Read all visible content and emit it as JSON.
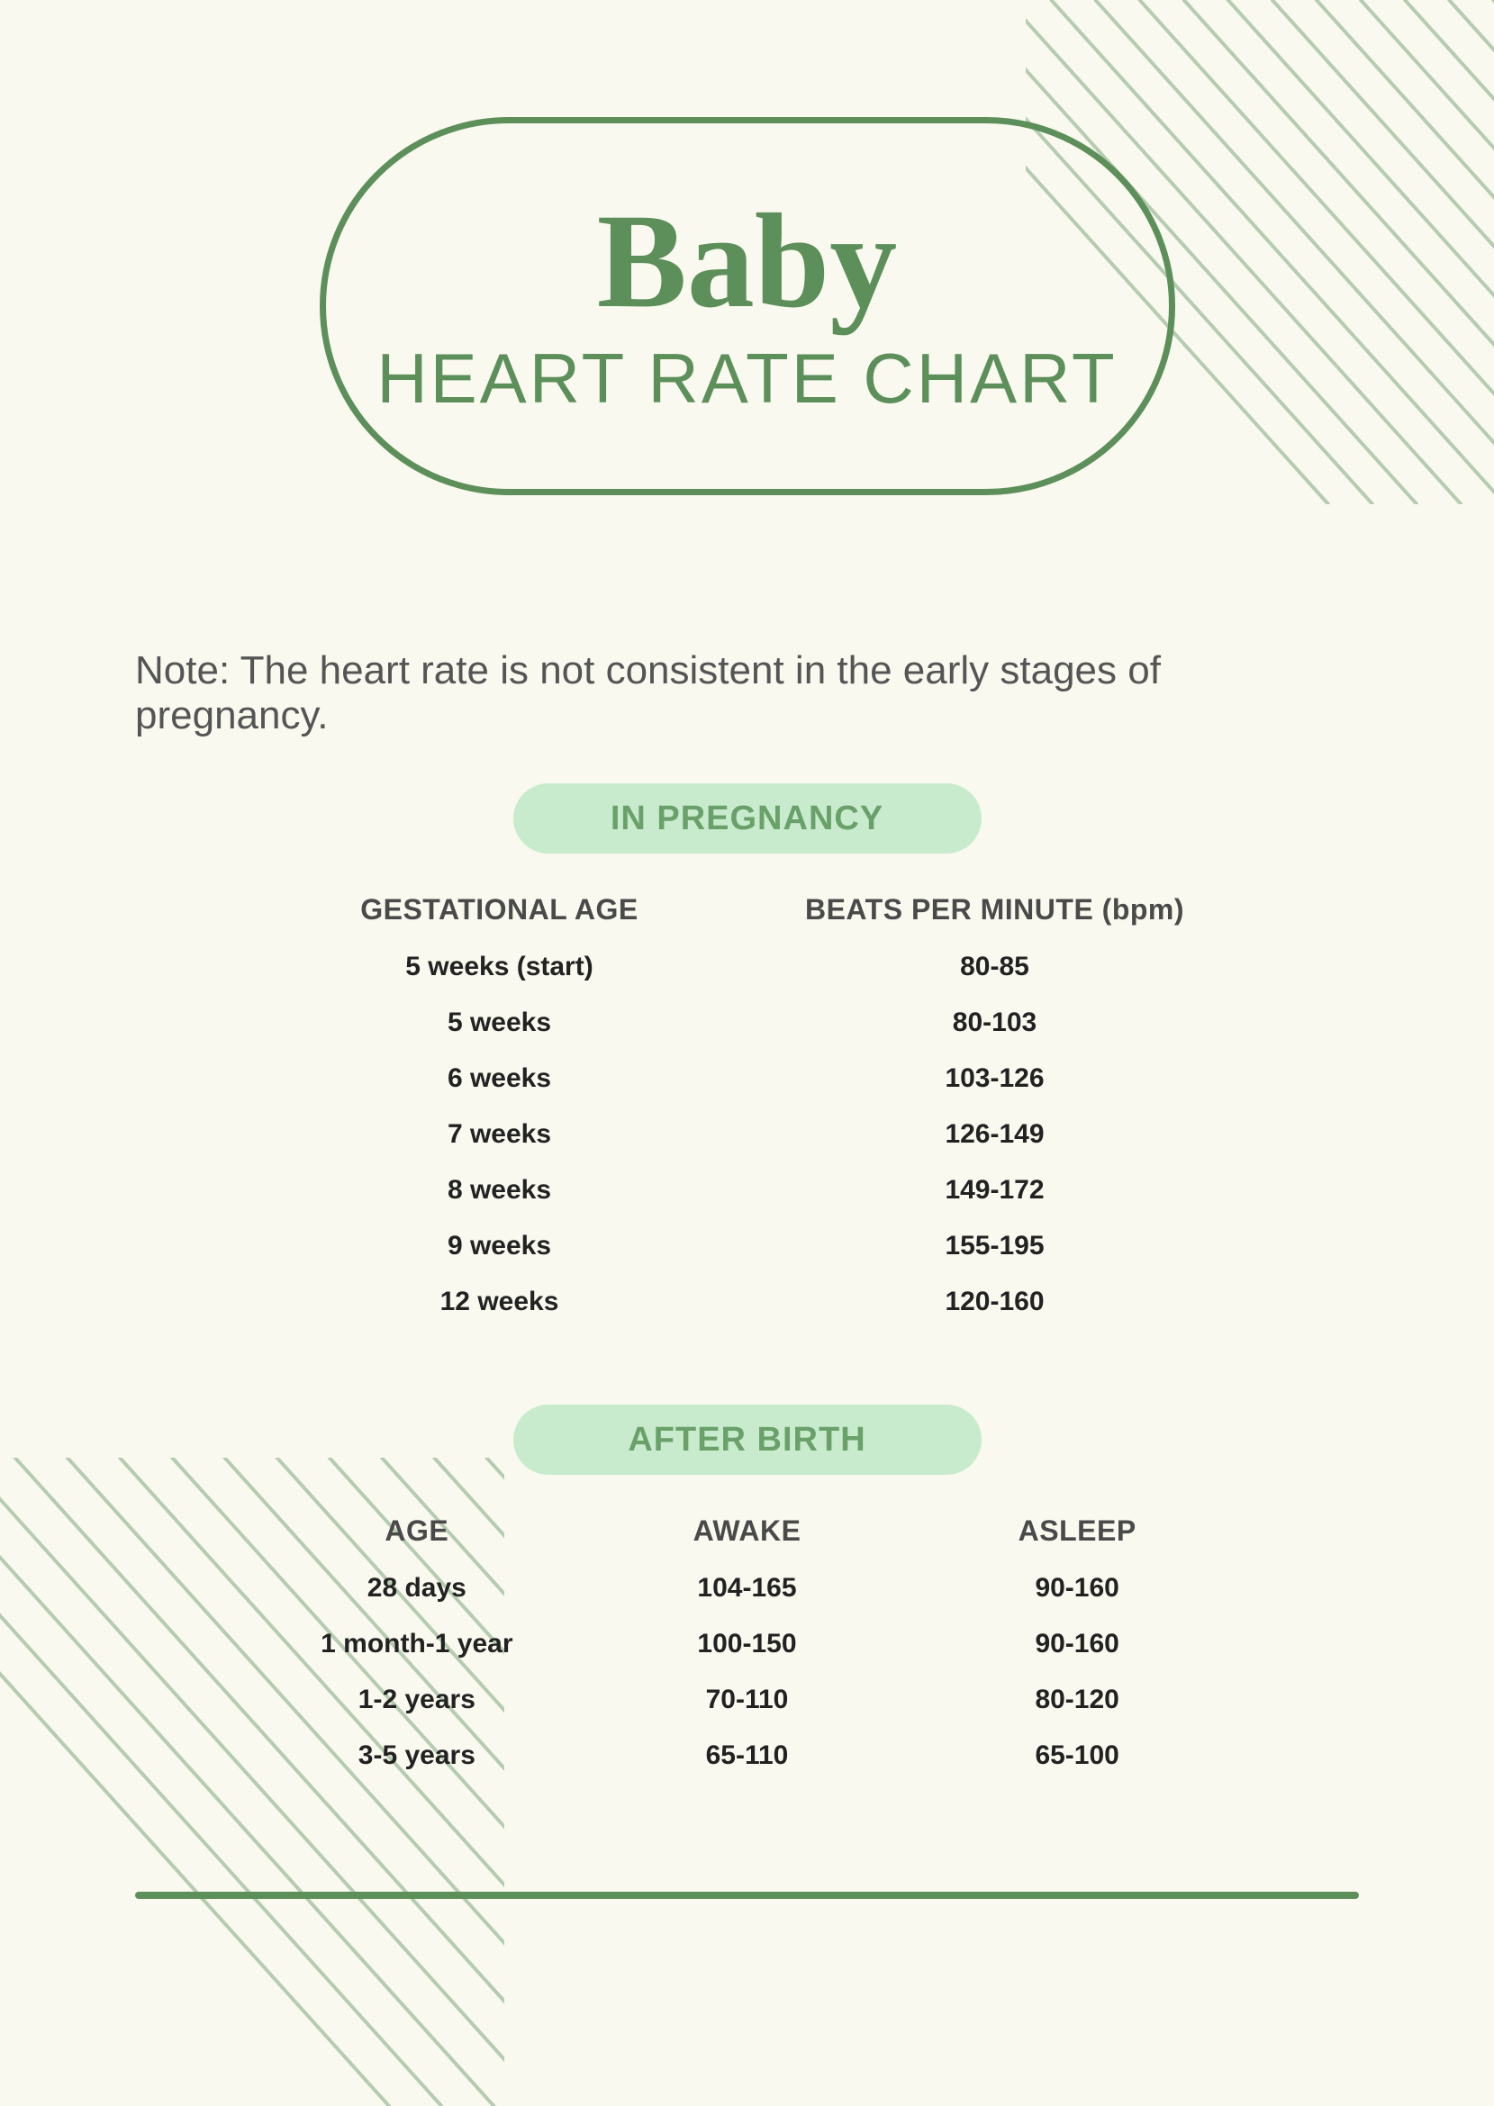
{
  "colors": {
    "background": "#f9f9ef",
    "accent_green": "#5d8f5a",
    "accent_green_text": "#6aa16a",
    "pill_bg": "#c8ebcd",
    "note_text": "#555555",
    "header_text": "#4a4a4a",
    "body_text": "#222222",
    "hatch_stroke": "#7fa97f"
  },
  "header": {
    "title_script": "Baby",
    "title_sub": "HEART RATE CHART"
  },
  "note": "Note: The heart rate is not consistent in the early stages of pregnancy.",
  "pregnancy": {
    "pill_label": "IN PREGNANCY",
    "columns": [
      "GESTATIONAL AGE",
      "BEATS PER MINUTE (bpm)"
    ],
    "rows": [
      [
        "5 weeks (start)",
        "80-85"
      ],
      [
        "5 weeks",
        "80-103"
      ],
      [
        "6 weeks",
        "103-126"
      ],
      [
        "7 weeks",
        "126-149"
      ],
      [
        "8 weeks",
        "149-172"
      ],
      [
        "9 weeks",
        "155-195"
      ],
      [
        "12 weeks",
        "120-160"
      ]
    ]
  },
  "afterbirth": {
    "pill_label": "AFTER BIRTH",
    "columns": [
      "AGE",
      "AWAKE",
      "ASLEEP"
    ],
    "rows": [
      [
        "28 days",
        "104-165",
        "90-160"
      ],
      [
        "1 month-1 year",
        "100-150",
        "90-160"
      ],
      [
        "1-2 years",
        "70-110",
        "80-120"
      ],
      [
        "3-5 years",
        "65-110",
        "65-100"
      ]
    ]
  },
  "decor": {
    "hatch_line_count": 22,
    "hatch_stroke_width": 4
  }
}
